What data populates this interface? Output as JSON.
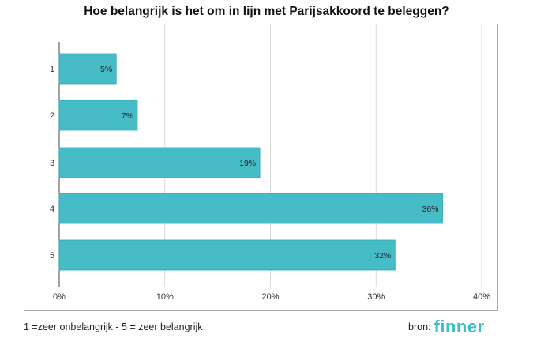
{
  "title": "Hoe belangrijk is het om in lijn met Parijsakkoord te beleggen?",
  "footnote": "1 =zeer onbelangrijk - 5 = zeer belangrijk",
  "source": {
    "label": "bron:",
    "logo": "finner"
  },
  "colors": {
    "bar": "#46bcc6",
    "bar_stroke": "#2fa7b2",
    "grid": "#d9d9d9",
    "border": "#aaaaaa",
    "logo": "#3cbfc9"
  },
  "chart_data": {
    "type": "bar",
    "orientation": "horizontal",
    "categories": [
      "1",
      "2",
      "3",
      "4",
      "5"
    ],
    "values": [
      5.4,
      7.4,
      19,
      36.3,
      31.8
    ],
    "data_labels": [
      "5%",
      "7%",
      "19%",
      "36%",
      "32%"
    ],
    "x_ticks": [
      "0%",
      "10%",
      "20%",
      "30%",
      "40%"
    ],
    "xlim": [
      0,
      40
    ],
    "grid": true
  }
}
